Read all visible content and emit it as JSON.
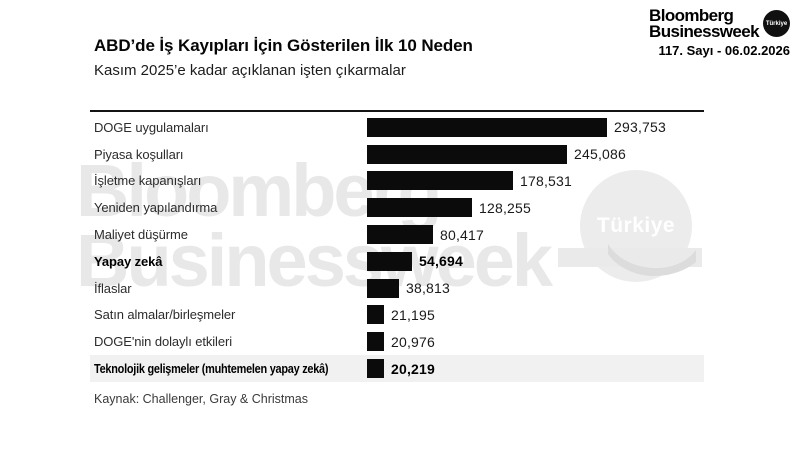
{
  "masthead": {
    "brand_line1": "Bloomberg",
    "brand_line2": "Businessweek",
    "badge": "Türkiye",
    "issue": "117. Sayı - 06.02.2026"
  },
  "watermark": {
    "line1": "Bloomberg",
    "line2": "Businessweek",
    "badge": "Türkiye"
  },
  "chart_data": {
    "type": "bar",
    "orientation": "horizontal",
    "title": "ABD’de İş Kayıpları İçin Gösterilen İlk 10 Neden",
    "subtitle": "Kasım 2025’e kadar açıklanan işten çıkarmalar",
    "source": "Kaynak: Challenger, Gray & Christmas",
    "categories": [
      "DOGE uygulamaları",
      "Piyasa koşulları",
      "İşletme kapanışları",
      "Yeniden yapılandırma",
      "Maliyet düşürme",
      "Yapay zekâ",
      "İflaslar",
      "Satın almalar/birleşmeler",
      "DOGE'nin dolaylı etkileri",
      "Teknolojik gelişmeler (muhtemelen yapay zekâ)"
    ],
    "values": [
      293753,
      245086,
      178531,
      128255,
      80417,
      54694,
      38813,
      21195,
      20976,
      20219
    ],
    "value_labels": [
      "293,753",
      "245,086",
      "178,531",
      "128,255",
      "80,417",
      "54,694",
      "38,813",
      "21,195",
      "20,976",
      "20,219"
    ],
    "emphasized": [
      5,
      9
    ],
    "highlighted_row": 9,
    "xlim": [
      0,
      293753
    ],
    "grid": false,
    "legend": false,
    "bar_color": "#0b0b0b",
    "highlight_band_color": "#f1f1f1"
  }
}
